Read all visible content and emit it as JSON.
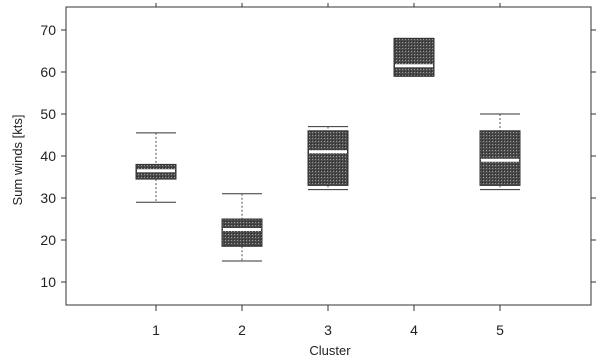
{
  "chart_data": {
    "type": "box",
    "xlabel": "Cluster",
    "ylabel": "Sum winds [kts]",
    "ylim": [
      5,
      75
    ],
    "yticks": [
      10,
      20,
      30,
      40,
      50,
      60,
      70
    ],
    "categories": [
      "1",
      "2",
      "3",
      "4",
      "5"
    ],
    "boxes": [
      {
        "category": "1",
        "min": 29,
        "q1": 34.5,
        "median": 36.5,
        "q3": 38,
        "max": 45.5
      },
      {
        "category": "2",
        "min": 15,
        "q1": 18.5,
        "median": 22.5,
        "q3": 25,
        "max": 31
      },
      {
        "category": "3",
        "min": 32,
        "q1": 33,
        "median": 41,
        "q3": 46,
        "max": 47
      },
      {
        "category": "4",
        "min": 59,
        "q1": 59,
        "median": 61.5,
        "q3": 68,
        "max": 68
      },
      {
        "category": "5",
        "min": 32,
        "q1": 33,
        "median": 39,
        "q3": 46,
        "max": 50
      }
    ],
    "grid": false,
    "legend": "none",
    "colors": {
      "box_fill": "#3a3a3a",
      "median": "#ffffff",
      "frame": "#333333",
      "whisker": "#444444"
    }
  }
}
